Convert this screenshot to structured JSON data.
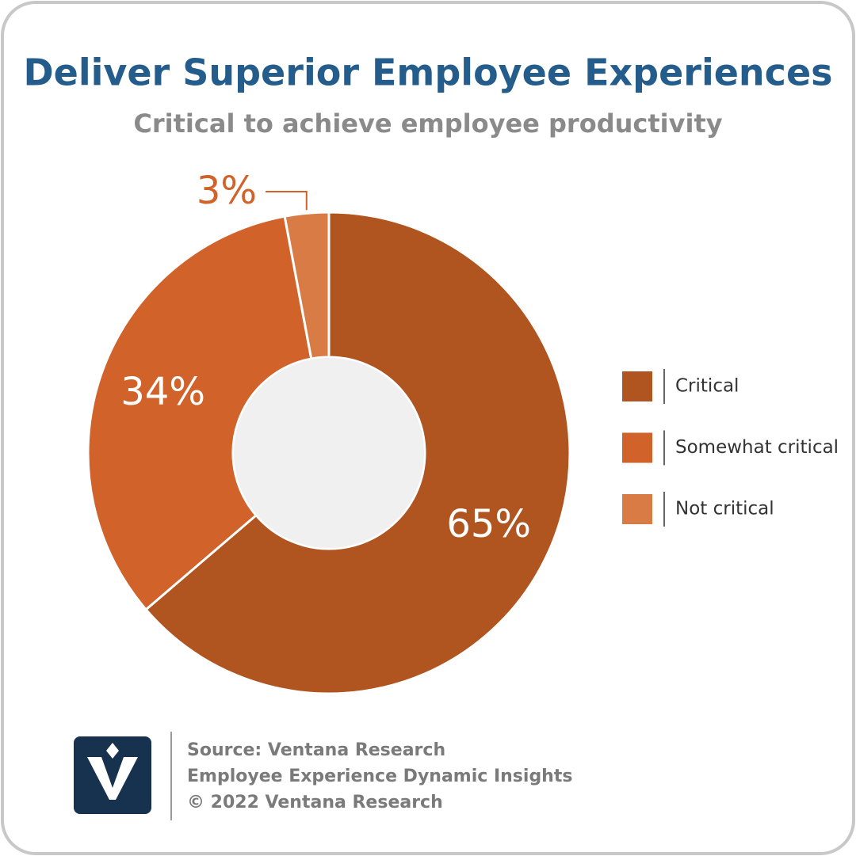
{
  "chart_data": {
    "type": "donut",
    "title": "Deliver Superior Employee Experiences",
    "subtitle": "Critical to achieve employee productivity",
    "categories": [
      "Critical",
      "Somewhat critical",
      "Not critical"
    ],
    "values": [
      65,
      34,
      3
    ],
    "value_labels": [
      "65%",
      "34%",
      "3%"
    ],
    "colors": [
      "#b05420",
      "#d0622a",
      "#d97b45"
    ],
    "legend": "right"
  },
  "footer": {
    "lines": [
      "Source: Ventana Research",
      "Employee Experience Dynamic Insights",
      "© 2022 Ventana Research"
    ]
  }
}
